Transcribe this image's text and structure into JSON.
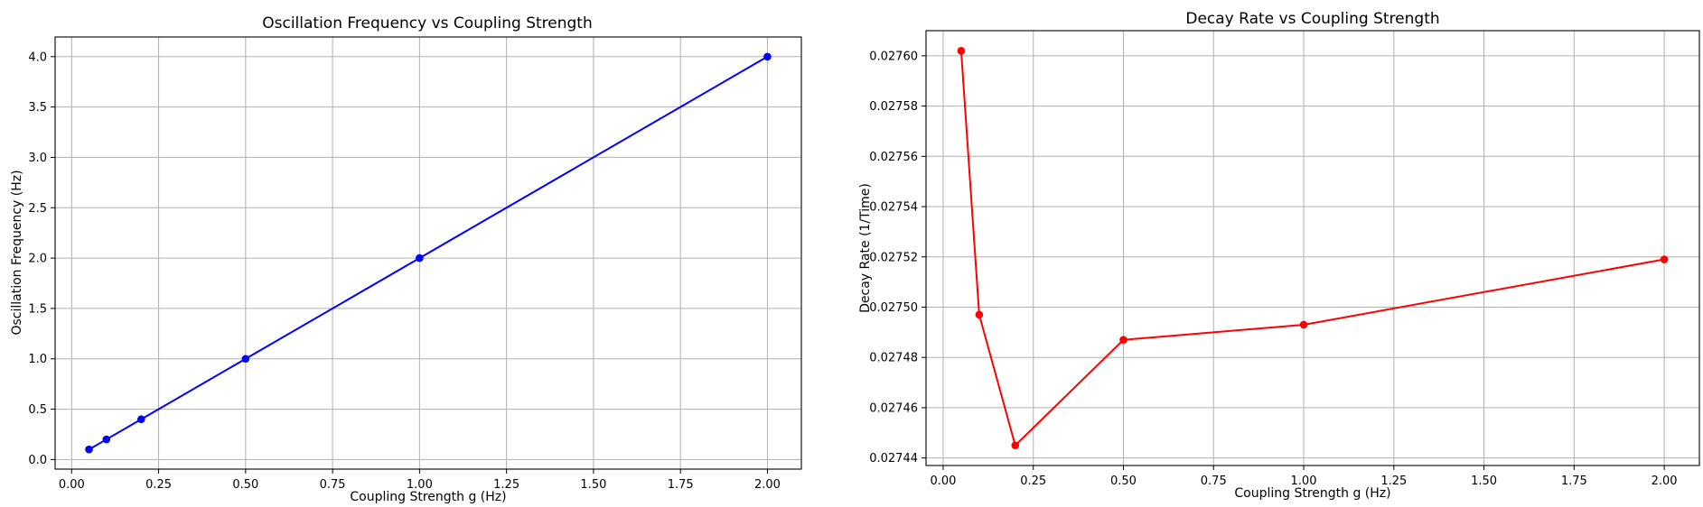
{
  "chart_data": [
    {
      "type": "line",
      "title": "Oscillation Frequency vs Coupling Strength",
      "xlabel": "Coupling Strength g (Hz)",
      "ylabel": "Oscillation Frequency (Hz)",
      "x": [
        0.05,
        0.1,
        0.2,
        0.5,
        1.0,
        2.0
      ],
      "series": [
        {
          "values": [
            0.1,
            0.2,
            0.4,
            1.0,
            2.0,
            4.0
          ],
          "color": "#0000ff",
          "marker": "circle"
        }
      ],
      "xlim": [
        -0.0475,
        2.0975
      ],
      "ylim": [
        -0.095,
        4.195
      ],
      "xticks": [
        "0.00",
        "0.25",
        "0.50",
        "0.75",
        "1.00",
        "1.25",
        "1.50",
        "1.75",
        "2.00"
      ],
      "yticks": [
        "0.0",
        "0.5",
        "1.0",
        "1.5",
        "2.0",
        "2.5",
        "3.0",
        "3.5",
        "4.0"
      ],
      "grid": true
    },
    {
      "type": "line",
      "title": "Decay Rate vs Coupling Strength",
      "xlabel": "Coupling Strength g (Hz)",
      "ylabel": "Decay Rate (1/Time)",
      "x": [
        0.05,
        0.1,
        0.2,
        0.5,
        1.0,
        2.0
      ],
      "series": [
        {
          "values": [
            0.027602,
            0.027497,
            0.027445,
            0.027487,
            0.027493,
            0.027519
          ],
          "color": "#ff0000",
          "marker": "circle"
        }
      ],
      "xlim": [
        -0.0475,
        2.0975
      ],
      "ylim": [
        0.027437,
        0.02761
      ],
      "xticks": [
        "0.00",
        "0.25",
        "0.50",
        "0.75",
        "1.00",
        "1.25",
        "1.50",
        "1.75",
        "2.00"
      ],
      "yticks": [
        "0.02744",
        "0.02746",
        "0.02748",
        "0.02750",
        "0.02752",
        "0.02754",
        "0.02756",
        "0.02758",
        "0.02760"
      ],
      "grid": true
    }
  ]
}
